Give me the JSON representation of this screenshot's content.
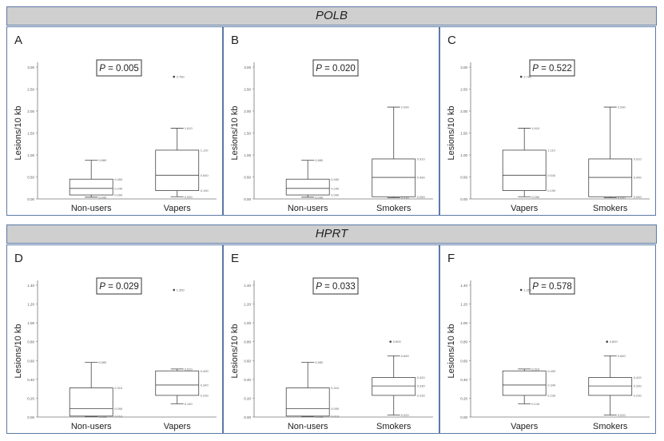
{
  "sections": [
    {
      "title": "POLB"
    },
    {
      "title": "HPRT"
    }
  ],
  "chart_data": [
    {
      "type": "box",
      "panel": "A",
      "section": "POLB",
      "p_label": "P",
      "p_value": "= 0.005",
      "ylabel": "Lesions/10 kb",
      "ylim": [
        0,
        3.0
      ],
      "ticks": [
        "0.00",
        "0.50",
        "1.00",
        "1.50",
        "2.00",
        "2.50",
        "3.00"
      ],
      "categories": [
        "Non-users",
        "Vapers"
      ],
      "boxes": [
        {
          "min": 0.04,
          "q1": 0.09,
          "median": 0.24,
          "q3": 0.45,
          "max": 0.88,
          "outlier": null
        },
        {
          "min": 0.05,
          "q1": 0.19,
          "median": 0.54,
          "q3": 1.11,
          "max": 1.61,
          "outlier": 2.78
        }
      ]
    },
    {
      "type": "box",
      "panel": "B",
      "section": "POLB",
      "p_label": "P",
      "p_value": "= 0.020",
      "ylabel": "Lesions/10 kb",
      "ylim": [
        0,
        3.0
      ],
      "ticks": [
        "0.00",
        "0.50",
        "1.00",
        "1.50",
        "2.00",
        "2.50",
        "3.00"
      ],
      "categories": [
        "Non-users",
        "Smokers"
      ],
      "boxes": [
        {
          "min": 0.04,
          "q1": 0.09,
          "median": 0.24,
          "q3": 0.45,
          "max": 0.88,
          "outlier": null
        },
        {
          "min": 0.03,
          "q1": 0.05,
          "median": 0.49,
          "q3": 0.91,
          "max": 2.09,
          "outlier": null
        }
      ]
    },
    {
      "type": "box",
      "panel": "C",
      "section": "POLB",
      "p_label": "P",
      "p_value": "= 0.522",
      "ylabel": "Lesions/10 kb",
      "ylim": [
        0,
        3.0
      ],
      "ticks": [
        "0.00",
        "0.50",
        "1.00",
        "1.50",
        "2.00",
        "2.50",
        "3.00"
      ],
      "categories": [
        "Vapers",
        "Smokers"
      ],
      "boxes": [
        {
          "min": 0.05,
          "q1": 0.19,
          "median": 0.54,
          "q3": 1.11,
          "max": 1.61,
          "outlier": 2.78
        },
        {
          "min": 0.03,
          "q1": 0.05,
          "median": 0.49,
          "q3": 0.91,
          "max": 2.09,
          "outlier": null
        }
      ]
    },
    {
      "type": "box",
      "panel": "D",
      "section": "HPRT",
      "p_label": "P",
      "p_value": "= 0.029",
      "ylabel": "Lesions/10 kb",
      "ylim": [
        0,
        1.4
      ],
      "ticks": [
        "0.00",
        "0.20",
        "0.40",
        "0.60",
        "0.80",
        "1.00",
        "1.20",
        "1.40"
      ],
      "categories": [
        "Non-users",
        "Vapers"
      ],
      "boxes": [
        {
          "min": 0.005,
          "q1": 0.01,
          "median": 0.09,
          "q3": 0.31,
          "max": 0.58,
          "outlier": null
        },
        {
          "min": 0.14,
          "q1": 0.23,
          "median": 0.34,
          "q3": 0.49,
          "max": 0.51,
          "outlier": 1.35
        }
      ]
    },
    {
      "type": "box",
      "panel": "E",
      "section": "HPRT",
      "p_label": "P",
      "p_value": "= 0.033",
      "ylabel": "Lesions/10 kb",
      "ylim": [
        0,
        1.4
      ],
      "ticks": [
        "0.00",
        "0.20",
        "0.40",
        "0.60",
        "0.80",
        "1.00",
        "1.20",
        "1.40"
      ],
      "categories": [
        "Non-users",
        "Smokers"
      ],
      "boxes": [
        {
          "min": 0.005,
          "q1": 0.01,
          "median": 0.09,
          "q3": 0.31,
          "max": 0.58,
          "outlier": null
        },
        {
          "min": 0.02,
          "q1": 0.23,
          "median": 0.33,
          "q3": 0.42,
          "max": 0.65,
          "outlier": 0.8
        }
      ]
    },
    {
      "type": "box",
      "panel": "F",
      "section": "HPRT",
      "p_label": "P",
      "p_value": "= 0.578",
      "ylabel": "Lesions/10 kb",
      "ylim": [
        0,
        1.4
      ],
      "ticks": [
        "0.00",
        "0.20",
        "0.40",
        "0.60",
        "0.80",
        "1.00",
        "1.20",
        "1.40"
      ],
      "categories": [
        "Vapers",
        "Smokers"
      ],
      "boxes": [
        {
          "min": 0.14,
          "q1": 0.23,
          "median": 0.34,
          "q3": 0.49,
          "max": 0.51,
          "outlier": 1.35
        },
        {
          "min": 0.02,
          "q1": 0.23,
          "median": 0.33,
          "q3": 0.42,
          "max": 0.65,
          "outlier": 0.8
        }
      ]
    }
  ]
}
